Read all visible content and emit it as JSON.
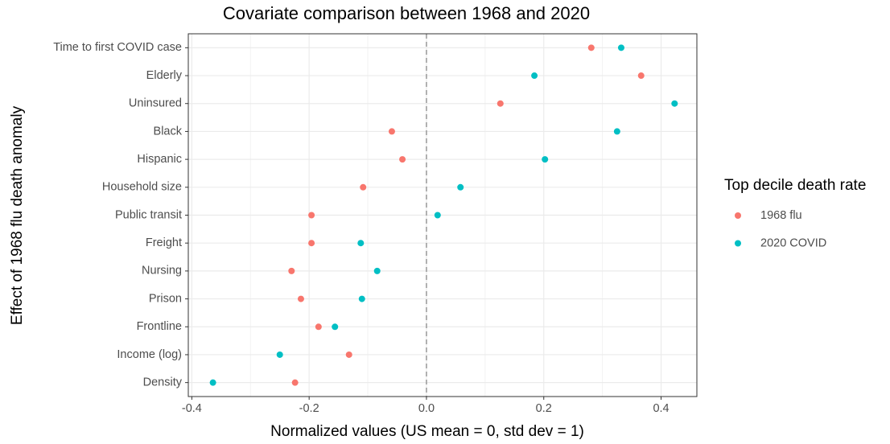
{
  "chart_data": {
    "type": "dot",
    "title": "Covariate comparison between 1968 and 2020",
    "x_label": "Normalized values (US mean = 0, std dev = 1)",
    "y_label": "Effect of 1968 flu death anomaly",
    "legend_title": "Top decile death rate",
    "categories": [
      "Time to first COVID case",
      "Elderly",
      "Uninsured",
      "Black",
      "Hispanic",
      "Household size",
      "Public transit",
      "Freight",
      "Nursing",
      "Prison",
      "Frontline",
      "Income (log)",
      "Density"
    ],
    "series": [
      {
        "name": "1968 flu",
        "color": "#f8766d",
        "values": [
          0.281,
          0.366,
          0.126,
          -0.059,
          -0.041,
          -0.108,
          -0.196,
          -0.196,
          -0.23,
          -0.214,
          -0.184,
          -0.132,
          -0.224
        ]
      },
      {
        "name": "2020 COVID",
        "color": "#00bfc4",
        "values": [
          0.332,
          0.184,
          0.423,
          0.325,
          0.202,
          0.058,
          0.019,
          -0.112,
          -0.084,
          -0.11,
          -0.156,
          -0.25,
          -0.364
        ]
      }
    ],
    "xlim": [
      -0.406,
      0.461
    ],
    "xticks": [
      -0.4,
      -0.2,
      {
        "value": 0,
        "label": "0.0"
      },
      0.2,
      0.4
    ],
    "reference_line": 0,
    "grid": true,
    "legend": "right"
  }
}
